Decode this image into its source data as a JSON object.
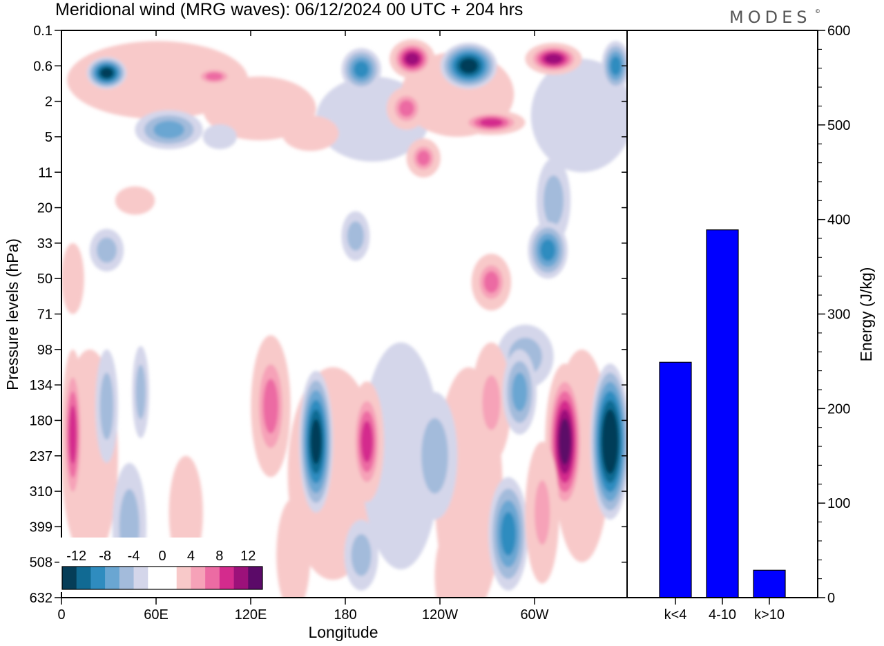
{
  "header": {
    "title": "Meridional wind (MRG waves):  06/12/2024  00 UTC  + 204 hrs",
    "brand": "MODES",
    "brand_mark": "©"
  },
  "chart_data": [
    {
      "type": "heatmap",
      "title": "Meridional wind (MRG waves):  06/12/2024  00 UTC  + 204 hrs",
      "xlabel": "Longitude",
      "ylabel": "Pressure levels (hPa)",
      "x_tick_labels": [
        "0",
        "60E",
        "120E",
        "180",
        "120W",
        "60W"
      ],
      "y_tick_labels": [
        "0.1",
        "0.6",
        "2",
        "5",
        "11",
        "20",
        "33",
        "50",
        "71",
        "98",
        "134",
        "180",
        "237",
        "310",
        "399",
        "508",
        "632"
      ],
      "colorbar": {
        "labels": [
          "-12",
          "-8",
          "-4",
          "0",
          "4",
          "8",
          "12"
        ],
        "colors": [
          "#053d58",
          "#116a93",
          "#2f8cbf",
          "#6aa6d2",
          "#a3bbdb",
          "#d4d6ea",
          "#ffffff",
          "#ffffff",
          "#f8c9c9",
          "#f6a2b8",
          "#ec6ba3",
          "#d42b8d",
          "#9c117a",
          "#5b0a68"
        ]
      },
      "features": [
        {
          "lon": 8,
          "lev": 1.2,
          "v": -12,
          "rx": 3.5,
          "ry": 0.45
        },
        {
          "lon": 27,
          "lev": 1.3,
          "v": 8,
          "rx": 4,
          "ry": 0.3
        },
        {
          "lon": 19,
          "lev": 2.8,
          "v": -6,
          "rx": 6,
          "ry": 0.55
        },
        {
          "lon": 28,
          "lev": 3,
          "v": -3,
          "rx": 3,
          "ry": 0.35
        },
        {
          "lon": 34,
          "lev": 2.3,
          "v": 5,
          "rx": 3,
          "ry": 0.35
        },
        {
          "lon": 44,
          "lev": 2.9,
          "v": 3,
          "rx": 5,
          "ry": 0.5
        },
        {
          "lon": 53,
          "lev": 1.1,
          "v": -9,
          "rx": 3.5,
          "ry": 0.6
        },
        {
          "lon": 62,
          "lev": 0.8,
          "v": 13,
          "rx": 4,
          "ry": 0.55
        },
        {
          "lon": 61,
          "lev": 2.2,
          "v": 9,
          "rx": 3.5,
          "ry": 0.6
        },
        {
          "lon": 64,
          "lev": 3.6,
          "v": 8,
          "rx": 3,
          "ry": 0.55
        },
        {
          "lon": 72,
          "lev": 1,
          "v": -12,
          "rx": 5,
          "ry": 0.65
        },
        {
          "lon": 76,
          "lev": 2.6,
          "v": 10,
          "rx": 6,
          "ry": 0.35
        },
        {
          "lon": 87,
          "lev": 0.8,
          "v": 12,
          "rx": 5,
          "ry": 0.45
        },
        {
          "lon": 98,
          "lev": 1,
          "v": -8,
          "rx": 2.5,
          "ry": 0.7
        },
        {
          "lon": 52,
          "lev": 5.8,
          "v": -5,
          "rx": 2.5,
          "ry": 0.7
        },
        {
          "lon": 87,
          "lev": 4.8,
          "v": -4,
          "rx": 3,
          "ry": 1.2
        },
        {
          "lon": 13,
          "lev": 4.8,
          "v": 4,
          "rx": 3.5,
          "ry": 0.4
        },
        {
          "lon": 2,
          "lev": 7,
          "v": 5,
          "rx": 2,
          "ry": 1
        },
        {
          "lon": 8,
          "lev": 6.2,
          "v": -4,
          "rx": 3,
          "ry": 0.6
        },
        {
          "lon": 86,
          "lev": 6.2,
          "v": -8,
          "rx": 3.5,
          "ry": 0.8
        },
        {
          "lon": 76,
          "lev": 7.1,
          "v": 8,
          "rx": 3.5,
          "ry": 0.8
        },
        {
          "lon": 82,
          "lev": 9.2,
          "v": -5,
          "rx": 5,
          "ry": 0.9
        },
        {
          "lon": 2,
          "lev": 11.4,
          "v": 10,
          "rx": 2,
          "ry": 2.4
        },
        {
          "lon": 8,
          "lev": 10.6,
          "v": -5,
          "rx": 2,
          "ry": 1.6
        },
        {
          "lon": 14,
          "lev": 10.2,
          "v": -5,
          "rx": 1.5,
          "ry": 1.3
        },
        {
          "lon": 37,
          "lev": 10.6,
          "v": 9,
          "rx": 3.5,
          "ry": 2
        },
        {
          "lon": 45,
          "lev": 11.6,
          "v": -12,
          "rx": 3,
          "ry": 2
        },
        {
          "lon": 54,
          "lev": 11.6,
          "v": 11,
          "rx": 3,
          "ry": 1.7
        },
        {
          "lon": 66,
          "lev": 12,
          "v": -5,
          "rx": 4,
          "ry": 1.8
        },
        {
          "lon": 76,
          "lev": 10.5,
          "v": 7,
          "rx": 3.5,
          "ry": 1.7
        },
        {
          "lon": 81,
          "lev": 10.2,
          "v": -6,
          "rx": 3,
          "ry": 1.2
        },
        {
          "lon": 89,
          "lev": 11.6,
          "v": 14,
          "rx": 3.5,
          "ry": 2.2
        },
        {
          "lon": 97,
          "lev": 11.6,
          "v": -14,
          "rx": 3.5,
          "ry": 2.2
        },
        {
          "lon": 12,
          "lev": 14,
          "v": -4,
          "rx": 3,
          "ry": 1.8
        },
        {
          "lon": 22,
          "lev": 13.6,
          "v": 3,
          "rx": 3,
          "ry": 1.6
        },
        {
          "lon": 41,
          "lev": 14.8,
          "v": 4,
          "rx": 3,
          "ry": 1.6
        },
        {
          "lon": 53,
          "lev": 14.8,
          "v": -5,
          "rx": 3,
          "ry": 1
        },
        {
          "lon": 69,
          "lev": 15.4,
          "v": 5,
          "rx": 3,
          "ry": 1.4
        },
        {
          "lon": 79,
          "lev": 14.2,
          "v": -8,
          "rx": 3.5,
          "ry": 1.6
        },
        {
          "lon": 85,
          "lev": 13.6,
          "v": 7,
          "rx": 3,
          "ry": 2
        }
      ],
      "layers": [
        {
          "lon": 17,
          "lev": 1.4,
          "v": 2,
          "rx": 16,
          "ry": 1.1
        },
        {
          "lon": 35,
          "lev": 2.2,
          "v": 2.5,
          "rx": 10,
          "ry": 0.9
        },
        {
          "lon": 55,
          "lev": 2.5,
          "v": -2.5,
          "rx": 10,
          "ry": 1.2
        },
        {
          "lon": 70,
          "lev": 1.8,
          "v": 3,
          "rx": 10,
          "ry": 1.2
        },
        {
          "lon": 92,
          "lev": 2.4,
          "v": -2.5,
          "rx": 9,
          "ry": 1.6
        },
        {
          "lon": 5,
          "lev": 12,
          "v": 3,
          "rx": 5,
          "ry": 3
        },
        {
          "lon": 48,
          "lev": 12.5,
          "v": 2.5,
          "rx": 8,
          "ry": 3
        },
        {
          "lon": 60,
          "lev": 12,
          "v": -2.5,
          "rx": 7,
          "ry": 3.2
        },
        {
          "lon": 72,
          "lev": 13,
          "v": 3,
          "rx": 6,
          "ry": 3.5
        },
        {
          "lon": 92,
          "lev": 12,
          "v": 3,
          "rx": 5,
          "ry": 3
        }
      ]
    },
    {
      "type": "bar",
      "categories": [
        "k<4",
        "4-10",
        "k>10"
      ],
      "values": [
        249,
        389,
        29
      ],
      "ylabel": "Energy (J/kg)",
      "ylim": [
        0,
        600
      ],
      "y_tick_labels": [
        "0",
        "100",
        "200",
        "300",
        "400",
        "500",
        "600"
      ],
      "bar_color": "#0000ff"
    }
  ]
}
